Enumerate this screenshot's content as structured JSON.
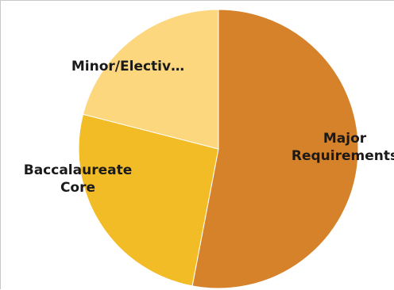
{
  "chart_data": {
    "type": "pie",
    "title": "",
    "start_angle_deg": 0,
    "direction": "clockwise",
    "slices": [
      {
        "label": "Major Requirements",
        "label_lines": [
          "Major",
          "Requirements"
        ],
        "value": 53,
        "color": "#d6822b"
      },
      {
        "label": "Baccalaureate Core",
        "label_lines": [
          "Baccalaureate",
          "Core"
        ],
        "value": 26,
        "color": "#f2bc26"
      },
      {
        "label": "Minor/Electiv…",
        "label_lines": [
          "Minor/Electiv…"
        ],
        "value": 21,
        "color": "#fcd77e"
      }
    ],
    "legend": "none"
  }
}
